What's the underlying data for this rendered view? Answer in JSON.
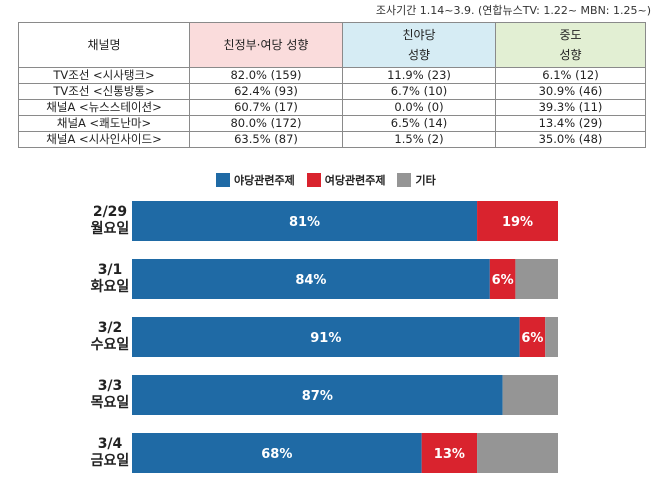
{
  "survey_period": "조사기간 1.14~3.9. (연합뉴스TV: 1.22~ MBN: 1.25~)",
  "table": {
    "headers": {
      "channel": "채널명",
      "pro_gov": "친정부·여당 성향",
      "pro_opp_line1": "친야당",
      "pro_opp_line2": "성향",
      "neutral_line1": "중도",
      "neutral_line2": "성향"
    },
    "rows": [
      {
        "channel": "TV조선 <시사탱크>",
        "pro_gov": "82.0% (159)",
        "pro_opp": "11.9% (23)",
        "neutral": "6.1% (12)"
      },
      {
        "channel": "TV조선 <신통방통>",
        "pro_gov": "62.4% (93)",
        "pro_opp": "6.7% (10)",
        "neutral": "30.9% (46)"
      },
      {
        "channel": "채널A <뉴스스테이션>",
        "pro_gov": "60.7% (17)",
        "pro_opp": "0.0% (0)",
        "neutral": "39.3% (11)"
      },
      {
        "channel": "채널A <쾌도난마>",
        "pro_gov": "80.0% (172)",
        "pro_opp": "6.5% (14)",
        "neutral": "13.4% (29)"
      },
      {
        "channel": "채널A <시사인사이드>",
        "pro_gov": "63.5% (87)",
        "pro_opp": "1.5% (2)",
        "neutral": "35.0% (48)"
      }
    ]
  },
  "colors": {
    "opposition": "#1f6aa5",
    "ruling": "#d9232e",
    "other": "#959595",
    "pro_gov_header": "#fadcdc",
    "pro_opp_header": "#d6ecf4",
    "neutral_header": "#e2efd3"
  },
  "chart_data": {
    "type": "bar",
    "orientation": "horizontal",
    "stacked": true,
    "legend_position": "top",
    "categories": [
      [
        "2/29",
        "월요일"
      ],
      [
        "3/1",
        "화요일"
      ],
      [
        "3/2",
        "수요일"
      ],
      [
        "3/3",
        "목요일"
      ],
      [
        "3/4",
        "금요일"
      ]
    ],
    "series": [
      {
        "name": "야당관련주제",
        "values": [
          81,
          84,
          91,
          87,
          68
        ],
        "labels": [
          "81%",
          "84%",
          "91%",
          "87%",
          "68%"
        ]
      },
      {
        "name": "여당관련주제",
        "values": [
          19,
          6,
          6,
          0,
          13
        ],
        "labels": [
          "19%",
          "6%",
          "6%",
          "",
          "13%"
        ]
      },
      {
        "name": "기타",
        "values": [
          0,
          10,
          3,
          13,
          19
        ],
        "labels": [
          "",
          "",
          "",
          "",
          ""
        ]
      }
    ],
    "xlim": [
      0,
      100
    ]
  }
}
